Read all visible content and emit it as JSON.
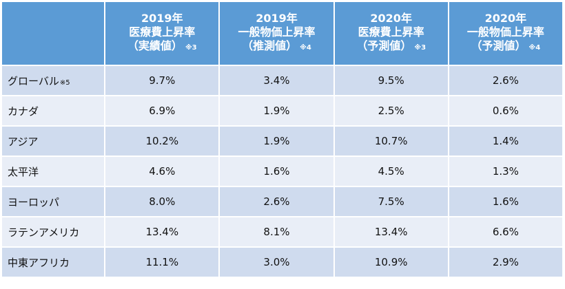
{
  "columns": [
    {
      "year": "2019年",
      "title": "医療費上昇率",
      "kind": "（実績値）",
      "note": "※3"
    },
    {
      "year": "2019年",
      "title": "一般物価上昇率",
      "kind": "（推測値）",
      "note": "※4"
    },
    {
      "year": "2020年",
      "title": "医療費上昇率",
      "kind": "（予測値）",
      "note": "※3"
    },
    {
      "year": "2020年",
      "title": "一般物価上昇率",
      "kind": "（予測値）",
      "note": "※4"
    }
  ],
  "rows": [
    {
      "label": "グローバル",
      "note": "※5",
      "values": [
        "9.7%",
        "3.4%",
        "9.5%",
        "2.6%"
      ]
    },
    {
      "label": "カナダ",
      "note": "",
      "values": [
        "6.9%",
        "1.9%",
        "2.5%",
        "0.6%"
      ]
    },
    {
      "label": "アジア",
      "note": "",
      "values": [
        "10.2%",
        "1.9%",
        "10.7%",
        "1.4%"
      ]
    },
    {
      "label": "太平洋",
      "note": "",
      "values": [
        "4.6%",
        "1.6%",
        "4.5%",
        "1.3%"
      ]
    },
    {
      "label": "ヨーロッパ",
      "note": "",
      "values": [
        "8.0%",
        "2.6%",
        "7.5%",
        "1.6%"
      ]
    },
    {
      "label": "ラテンアメリカ",
      "note": "",
      "values": [
        "13.4%",
        "8.1%",
        "13.4%",
        "6.6%"
      ]
    },
    {
      "label": "中東アフリカ",
      "note": "",
      "values": [
        "11.1%",
        "3.0%",
        "10.9%",
        "2.9%"
      ]
    }
  ]
}
